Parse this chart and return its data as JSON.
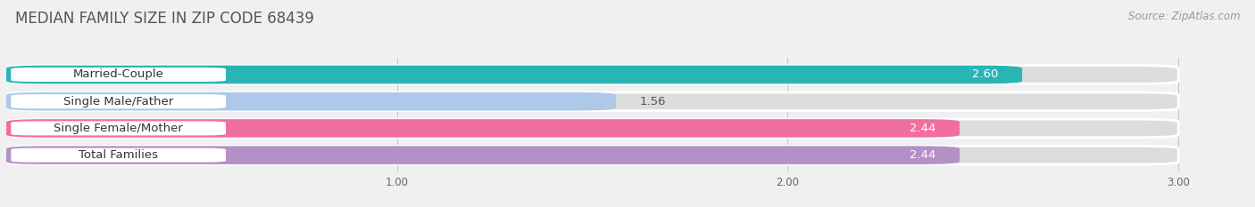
{
  "title": "MEDIAN FAMILY SIZE IN ZIP CODE 68439",
  "source": "Source: ZipAtlas.com",
  "categories": [
    "Married-Couple",
    "Single Male/Father",
    "Single Female/Mother",
    "Total Families"
  ],
  "values": [
    2.6,
    1.56,
    2.44,
    2.44
  ],
  "bar_colors": [
    "#2ab5b5",
    "#adc8e8",
    "#f06fa0",
    "#b390c5"
  ],
  "value_inside": [
    true,
    false,
    true,
    true
  ],
  "xlim": [
    0,
    3.18
  ],
  "xticks": [
    1.0,
    2.0,
    3.0
  ],
  "background_color": "#f0f0f0",
  "bar_background_color": "#dcdcdc",
  "bar_height": 0.68,
  "title_fontsize": 12,
  "label_fontsize": 9.5,
  "value_fontsize": 9.5,
  "source_fontsize": 8.5
}
